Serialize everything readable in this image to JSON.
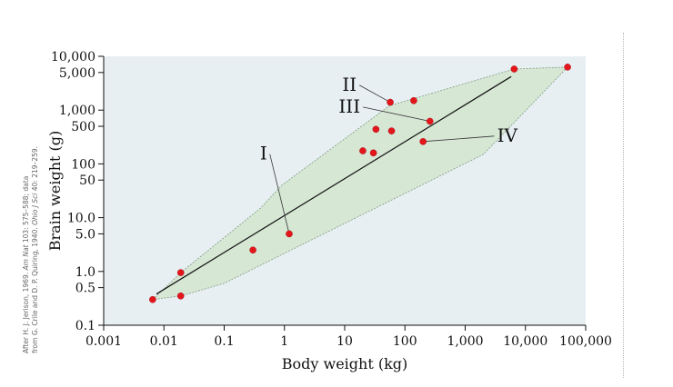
{
  "chart_data": {
    "type": "scatter",
    "xlabel": "Body weight (kg)",
    "ylabel": "Brain weight (g)",
    "xscale": "log",
    "yscale": "log",
    "xlim": [
      0.001,
      100000
    ],
    "ylim": [
      0.1,
      10000
    ],
    "x_ticks": [
      {
        "value": 0.001,
        "label": "0.001"
      },
      {
        "value": 0.01,
        "label": "0.01"
      },
      {
        "value": 0.1,
        "label": "0.1"
      },
      {
        "value": 1,
        "label": "1"
      },
      {
        "value": 10,
        "label": "10"
      },
      {
        "value": 100,
        "label": "100"
      },
      {
        "value": 1000,
        "label": "1,000"
      },
      {
        "value": 10000,
        "label": "10,000"
      },
      {
        "value": 100000,
        "label": "100,000"
      }
    ],
    "y_ticks": [
      {
        "value": 0.1,
        "label": "0.1"
      },
      {
        "value": 0.5,
        "label": "0.5"
      },
      {
        "value": 1,
        "label": "1.0"
      },
      {
        "value": 5,
        "label": "5.0"
      },
      {
        "value": 10,
        "label": "10.0"
      },
      {
        "value": 50,
        "label": "50"
      },
      {
        "value": 100,
        "label": "100"
      },
      {
        "value": 500,
        "label": "500"
      },
      {
        "value": 1000,
        "label": "1,000"
      },
      {
        "value": 5000,
        "label": "5,000"
      },
      {
        "value": 10000,
        "label": "10,000"
      }
    ],
    "points": [
      {
        "x": 0.0065,
        "y": 0.3
      },
      {
        "x": 0.019,
        "y": 0.35
      },
      {
        "x": 0.019,
        "y": 0.95
      },
      {
        "x": 0.3,
        "y": 2.5
      },
      {
        "x": 1.2,
        "y": 5.0
      },
      {
        "x": 20,
        "y": 175
      },
      {
        "x": 30,
        "y": 160
      },
      {
        "x": 33,
        "y": 440
      },
      {
        "x": 60,
        "y": 410
      },
      {
        "x": 57,
        "y": 1400
      },
      {
        "x": 140,
        "y": 1500
      },
      {
        "x": 200,
        "y": 260
      },
      {
        "x": 260,
        "y": 620
      },
      {
        "x": 6500,
        "y": 5800
      },
      {
        "x": 50000,
        "y": 6300
      }
    ],
    "trend_line": [
      {
        "x": 0.0075,
        "y": 0.38
      },
      {
        "x": 5800,
        "y": 4200
      }
    ],
    "envelope": [
      {
        "x": 0.0065,
        "y": 0.3
      },
      {
        "x": 0.019,
        "y": 0.95
      },
      {
        "x": 0.4,
        "y": 15
      },
      {
        "x": 0.9,
        "y": 40
      },
      {
        "x": 55,
        "y": 1200
      },
      {
        "x": 6500,
        "y": 5800
      },
      {
        "x": 50000,
        "y": 6300
      },
      {
        "x": 2000,
        "y": 150
      },
      {
        "x": 0.1,
        "y": 0.6
      },
      {
        "x": 0.019,
        "y": 0.35
      }
    ],
    "colors": {
      "point": "#e3161c",
      "envelope_fill": "#d6e7d4",
      "envelope_stroke": "#7f9c82",
      "plot_background": "#e8eff3",
      "trend_line": "#111111"
    },
    "annotations": [
      {
        "text": "I",
        "x": 0.45,
        "y": 120,
        "target_x": 1.2,
        "target_y": 5.0
      },
      {
        "text": "II",
        "x": 12,
        "y": 2300,
        "target_x": 57,
        "target_y": 1400
      },
      {
        "text": "III",
        "x": 12,
        "y": 900,
        "target_x": 260,
        "target_y": 620
      },
      {
        "text": "IV",
        "x": 5000,
        "y": 260,
        "target_x": 200,
        "target_y": 260
      }
    ],
    "credit": [
      {
        "text": "After H. J. Jerison, 1969. ",
        "style": "normal"
      },
      {
        "text": "Am Nat",
        "style": "italic"
      },
      {
        "text": " 103: 575–588; data",
        "style": "normal"
      },
      {
        "break": true
      },
      {
        "text": "from G. Crile and D. P. Quiring, 1940. ",
        "style": "normal"
      },
      {
        "text": "Ohio J Sci",
        "style": "italic"
      },
      {
        "text": " 40: 219–259.",
        "style": "normal"
      }
    ]
  }
}
